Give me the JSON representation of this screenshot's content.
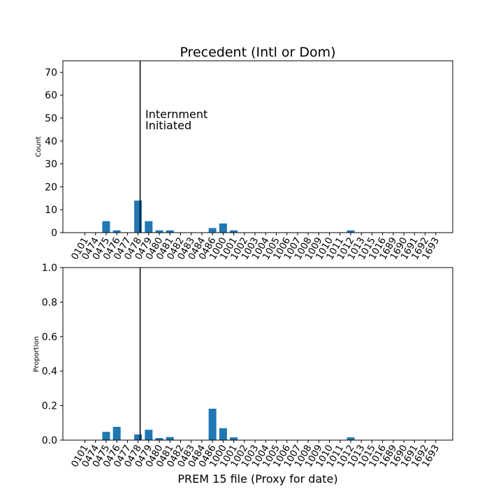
{
  "chart_data": [
    {
      "type": "bar",
      "title": "Precedent (Intl or Dom)",
      "xlabel": "",
      "ylabel": "Count",
      "ylim": [
        0,
        75
      ],
      "yticks": [
        "0",
        "10",
        "20",
        "30",
        "40",
        "50",
        "60",
        "70"
      ],
      "categories": [
        "0101",
        "0474",
        "0475",
        "0476",
        "0477",
        "0478",
        "0479",
        "0480",
        "0481",
        "0482",
        "0483",
        "0484",
        "0486",
        "1000",
        "1001",
        "1002",
        "1003",
        "1004",
        "1005",
        "1006",
        "1007",
        "1008",
        "1009",
        "1010",
        "1011",
        "1012",
        "1013",
        "1015",
        "1016",
        "1689",
        "1690",
        "1691",
        "1692",
        "1693"
      ],
      "values": [
        0,
        0,
        5,
        1,
        0,
        14,
        5,
        1,
        1,
        0,
        0,
        0,
        2,
        4,
        1,
        0,
        0,
        0,
        0,
        0,
        0,
        0,
        0,
        0,
        0,
        1,
        0,
        0,
        0,
        0,
        0,
        0,
        0,
        0
      ],
      "color": "#1f77b4",
      "vline": {
        "at_category": "0478",
        "color": "#000000"
      },
      "annotation": {
        "lines": [
          "Internment",
          "Initiated"
        ]
      },
      "grid": false
    },
    {
      "type": "bar",
      "title": "",
      "xlabel": "PREM 15 file (Proxy for date)",
      "ylabel": "Proportion",
      "ylim": [
        0,
        1.0
      ],
      "yticks": [
        "0.0",
        "0.2",
        "0.4",
        "0.6",
        "0.8",
        "1.0"
      ],
      "categories": [
        "0101",
        "0474",
        "0475",
        "0476",
        "0477",
        "0478",
        "0479",
        "0480",
        "0481",
        "0482",
        "0483",
        "0484",
        "0486",
        "1000",
        "1001",
        "1002",
        "1003",
        "1004",
        "1005",
        "1006",
        "1007",
        "1008",
        "1009",
        "1010",
        "1011",
        "1012",
        "1013",
        "1015",
        "1016",
        "1689",
        "1690",
        "1691",
        "1692",
        "1693"
      ],
      "values": [
        0,
        0,
        0.048,
        0.077,
        0,
        0.033,
        0.06,
        0.012,
        0.018,
        0,
        0,
        0,
        0.182,
        0.069,
        0.016,
        0,
        0,
        0,
        0,
        0,
        0,
        0,
        0,
        0,
        0,
        0.016,
        0,
        0,
        0,
        0,
        0,
        0,
        0,
        0
      ],
      "color": "#1f77b4",
      "vline": {
        "at_category": "0478",
        "color": "#000000"
      },
      "grid": false
    }
  ]
}
